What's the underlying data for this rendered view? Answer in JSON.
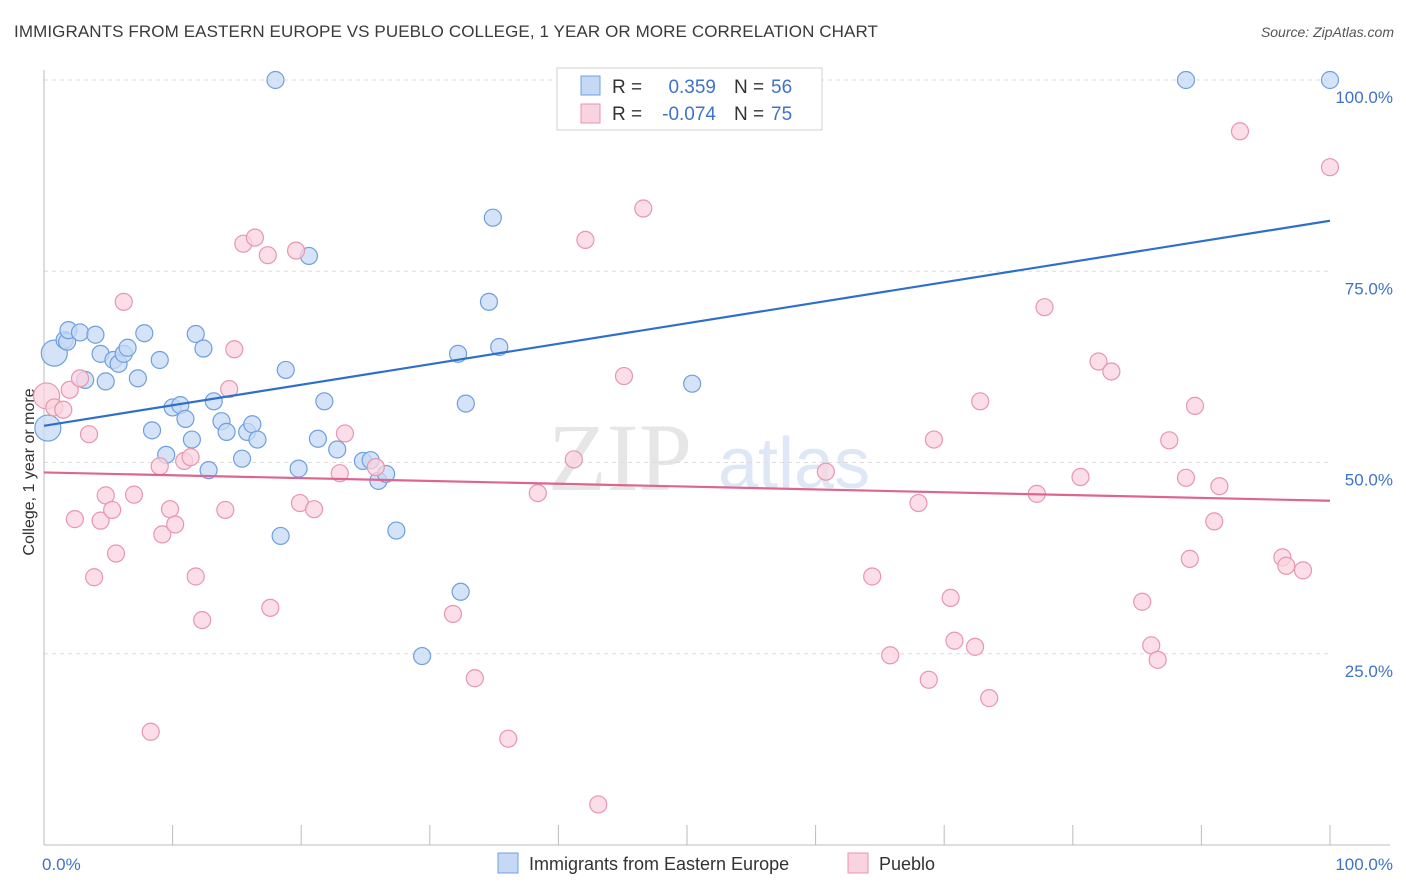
{
  "header": {
    "title": "IMMIGRANTS FROM EASTERN EUROPE VS PUEBLO COLLEGE, 1 YEAR OR MORE CORRELATION CHART",
    "source": "Source: ZipAtlas.com"
  },
  "watermark": {
    "zip": "ZIP",
    "atlas": "atlas"
  },
  "chart_data": {
    "type": "scatter",
    "title": "IMMIGRANTS FROM EASTERN EUROPE VS PUEBLO COLLEGE, 1 YEAR OR MORE CORRELATION CHART",
    "xlabel": "",
    "ylabel": "College, 1 year or more",
    "xlim": [
      0,
      100
    ],
    "ylim": [
      0,
      102
    ],
    "x_tick_labels": {
      "left": "0.0%",
      "right": "100.0%"
    },
    "y_ticks": [
      {
        "value": 25,
        "label": "25.0%"
      },
      {
        "value": 50,
        "label": "50.0%"
      },
      {
        "value": 75,
        "label": "75.0%"
      },
      {
        "value": 100,
        "label": "100.0%"
      }
    ],
    "grid": true,
    "legend_stats": [
      {
        "r_label": "R =",
        "r_value": "0.359",
        "n_label": "N =",
        "n_value": "56"
      },
      {
        "r_label": "R =",
        "r_value": "-0.074",
        "n_label": "N =",
        "n_value": "75"
      }
    ],
    "series": [
      {
        "name": "Immigrants from Eastern Europe",
        "color": "#6f9fe0",
        "fill": "#c5d9f4",
        "line_color": "#2f6fcc",
        "trend": {
          "x": [
            0,
            100
          ],
          "y": [
            54.8,
            81.6
          ]
        },
        "points": [
          [
            0.3,
            54.5
          ],
          [
            0.8,
            64.3
          ],
          [
            1.6,
            66.0
          ],
          [
            1.8,
            65.8
          ],
          [
            1.9,
            67.3
          ],
          [
            2.8,
            67.0
          ],
          [
            3.2,
            60.8
          ],
          [
            4.0,
            66.7
          ],
          [
            4.4,
            64.2
          ],
          [
            4.8,
            60.6
          ],
          [
            5.4,
            63.4
          ],
          [
            5.8,
            62.9
          ],
          [
            6.2,
            64.2
          ],
          [
            6.5,
            65.0
          ],
          [
            7.3,
            61.0
          ],
          [
            7.8,
            66.9
          ],
          [
            8.4,
            54.2
          ],
          [
            9.0,
            63.4
          ],
          [
            9.5,
            51.0
          ],
          [
            10.0,
            57.2
          ],
          [
            10.6,
            57.5
          ],
          [
            11.0,
            55.7
          ],
          [
            11.5,
            53.0
          ],
          [
            11.8,
            66.8
          ],
          [
            12.4,
            64.9
          ],
          [
            12.8,
            49.0
          ],
          [
            13.2,
            58.0
          ],
          [
            13.8,
            55.4
          ],
          [
            14.2,
            54.0
          ],
          [
            15.4,
            50.5
          ],
          [
            15.8,
            54.0
          ],
          [
            16.2,
            55.0
          ],
          [
            16.6,
            53.0
          ],
          [
            18.0,
            100.0
          ],
          [
            18.4,
            40.4
          ],
          [
            18.8,
            62.1
          ],
          [
            19.8,
            49.2
          ],
          [
            20.6,
            77.0
          ],
          [
            21.3,
            53.1
          ],
          [
            21.8,
            58.0
          ],
          [
            22.8,
            51.7
          ],
          [
            24.8,
            50.2
          ],
          [
            25.4,
            50.3
          ],
          [
            26.0,
            47.6
          ],
          [
            26.6,
            48.5
          ],
          [
            27.4,
            41.1
          ],
          [
            29.4,
            24.7
          ],
          [
            32.2,
            64.2
          ],
          [
            32.4,
            33.1
          ],
          [
            32.8,
            57.7
          ],
          [
            34.6,
            71.0
          ],
          [
            34.9,
            82.0
          ],
          [
            35.4,
            65.1
          ],
          [
            50.4,
            60.3
          ],
          [
            88.8,
            100.0
          ],
          [
            100.0,
            100.0
          ]
        ]
      },
      {
        "name": "Pueblo",
        "color": "#e896b0",
        "fill": "#f9d3df",
        "line_color": "#dd6690",
        "trend": {
          "x": [
            0,
            100
          ],
          "y": [
            48.7,
            45.0
          ]
        },
        "points": [
          [
            0.2,
            58.7
          ],
          [
            0.8,
            57.2
          ],
          [
            1.5,
            56.9
          ],
          [
            2.0,
            59.5
          ],
          [
            2.4,
            42.6
          ],
          [
            2.8,
            61.0
          ],
          [
            3.5,
            53.7
          ],
          [
            3.9,
            35.0
          ],
          [
            4.4,
            42.4
          ],
          [
            4.8,
            45.7
          ],
          [
            5.3,
            43.8
          ],
          [
            5.6,
            38.1
          ],
          [
            6.2,
            71.0
          ],
          [
            7.0,
            45.8
          ],
          [
            8.3,
            14.8
          ],
          [
            9.0,
            49.5
          ],
          [
            9.2,
            40.6
          ],
          [
            9.8,
            43.9
          ],
          [
            10.2,
            41.9
          ],
          [
            10.9,
            50.2
          ],
          [
            11.4,
            50.7
          ],
          [
            11.8,
            35.1
          ],
          [
            12.3,
            29.4
          ],
          [
            14.1,
            43.8
          ],
          [
            14.4,
            59.6
          ],
          [
            14.8,
            64.8
          ],
          [
            15.5,
            78.6
          ],
          [
            16.4,
            79.4
          ],
          [
            17.4,
            77.1
          ],
          [
            17.6,
            31.0
          ],
          [
            19.6,
            77.7
          ],
          [
            19.9,
            44.7
          ],
          [
            21.0,
            43.9
          ],
          [
            23.0,
            48.6
          ],
          [
            23.4,
            53.8
          ],
          [
            25.8,
            49.4
          ],
          [
            31.8,
            30.2
          ],
          [
            33.5,
            21.8
          ],
          [
            36.1,
            13.9
          ],
          [
            38.4,
            46.0
          ],
          [
            41.2,
            50.4
          ],
          [
            42.1,
            79.1
          ],
          [
            43.1,
            5.3
          ],
          [
            45.1,
            61.3
          ],
          [
            46.6,
            83.2
          ],
          [
            60.8,
            48.8
          ],
          [
            64.4,
            35.1
          ],
          [
            65.8,
            24.8
          ],
          [
            68.0,
            44.7
          ],
          [
            68.8,
            21.6
          ],
          [
            69.2,
            53.0
          ],
          [
            70.5,
            32.3
          ],
          [
            70.8,
            26.7
          ],
          [
            72.4,
            25.9
          ],
          [
            72.8,
            58.0
          ],
          [
            73.5,
            19.2
          ],
          [
            77.2,
            45.9
          ],
          [
            77.8,
            70.3
          ],
          [
            80.6,
            48.1
          ],
          [
            82.0,
            63.2
          ],
          [
            83.0,
            61.9
          ],
          [
            85.4,
            31.8
          ],
          [
            86.1,
            26.1
          ],
          [
            86.6,
            24.2
          ],
          [
            87.5,
            52.9
          ],
          [
            88.8,
            48.0
          ],
          [
            89.1,
            37.4
          ],
          [
            89.5,
            57.4
          ],
          [
            91.0,
            42.3
          ],
          [
            91.4,
            46.9
          ],
          [
            93.0,
            93.3
          ],
          [
            96.3,
            37.6
          ],
          [
            96.6,
            36.5
          ],
          [
            97.9,
            35.9
          ],
          [
            100.0,
            88.6
          ]
        ]
      }
    ]
  },
  "bottom_legend": {
    "items": [
      {
        "label": "Immigrants from Eastern Europe"
      },
      {
        "label": "Pueblo"
      }
    ]
  }
}
